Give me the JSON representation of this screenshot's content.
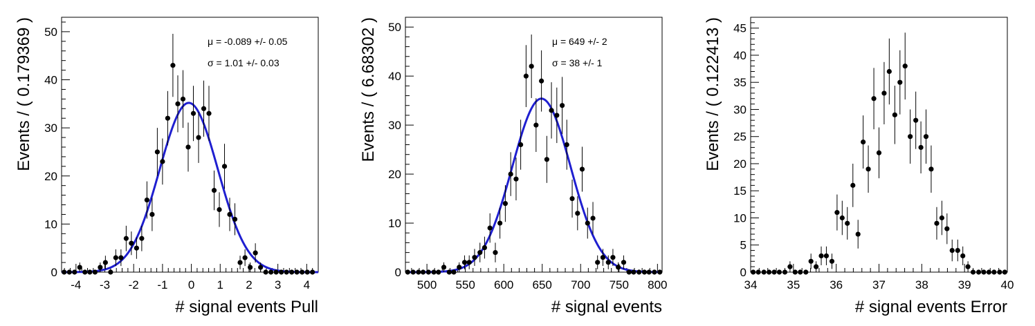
{
  "chart_data": [
    {
      "type": "scatter",
      "xlabel": "# signal events Pull",
      "ylabel": "Events / ( 0.179369 )",
      "xlim": [
        -4.5,
        4.4
      ],
      "ylim": [
        0,
        53
      ],
      "xticks": [
        -4,
        -3,
        -2,
        -1,
        0,
        1,
        2,
        3,
        4
      ],
      "yticks": [
        0,
        10,
        20,
        30,
        40,
        50
      ],
      "annotations": [
        "μ = -0.089 +/- 0.05",
        "σ =  1.01 +/- 0.03"
      ],
      "fit": {
        "type": "gaussian",
        "mean": -0.089,
        "sigma": 1.01,
        "amplitude": 35.2,
        "color": "#1f1fd0"
      },
      "x": [
        -4.41,
        -4.23,
        -4.05,
        -3.87,
        -3.69,
        -3.52,
        -3.34,
        -3.16,
        -2.98,
        -2.8,
        -2.62,
        -2.44,
        -2.26,
        -2.08,
        -1.9,
        -1.72,
        -1.54,
        -1.36,
        -1.18,
        -1.0,
        -0.82,
        -0.64,
        -0.47,
        -0.29,
        -0.11,
        0.07,
        0.25,
        0.43,
        0.61,
        0.79,
        0.97,
        1.15,
        1.33,
        1.51,
        1.69,
        1.86,
        2.04,
        2.22,
        2.4,
        2.58,
        2.76,
        2.94,
        3.12,
        3.3,
        3.48,
        3.66,
        3.84,
        4.02,
        4.2
      ],
      "y": [
        0,
        0,
        0,
        1,
        0,
        0,
        0,
        1,
        2,
        0,
        3,
        3,
        7,
        6,
        5,
        7,
        15,
        12,
        25,
        23,
        32,
        43,
        35,
        36,
        26,
        33,
        28,
        34,
        33,
        17,
        13,
        22,
        12,
        11,
        2,
        3,
        1,
        4,
        1,
        0,
        0,
        0,
        0,
        0,
        0,
        0,
        0,
        0,
        0
      ],
      "color": "#000000"
    },
    {
      "type": "scatter",
      "xlabel": "# signal events",
      "ylabel": "Events / ( 6.68302 )",
      "xlim": [
        472,
        806
      ],
      "ylim": [
        0,
        52
      ],
      "xticks": [
        500,
        550,
        600,
        650,
        700,
        750,
        800
      ],
      "yticks": [
        0,
        10,
        20,
        30,
        40,
        50
      ],
      "annotations": [
        "μ =  649 +/- 2",
        "σ =  38 +/- 1"
      ],
      "fit": {
        "type": "gaussian",
        "mean": 649,
        "sigma": 38,
        "amplitude": 35.4,
        "color": "#1f1fd0"
      },
      "x": [
        475,
        482,
        489,
        495,
        502,
        509,
        515,
        522,
        529,
        535,
        542,
        549,
        555,
        562,
        569,
        575,
        582,
        589,
        595,
        602,
        609,
        616,
        622,
        629,
        636,
        642,
        649,
        656,
        662,
        669,
        676,
        682,
        689,
        696,
        702,
        709,
        716,
        722,
        729,
        736,
        742,
        749,
        756,
        763,
        769,
        776,
        783,
        789,
        796,
        803
      ],
      "y": [
        0,
        0,
        0,
        0,
        0,
        0,
        0,
        1,
        0,
        0,
        1,
        2,
        2,
        3,
        4,
        5,
        9,
        4,
        10,
        14,
        20,
        19,
        26,
        40,
        42,
        30,
        39,
        23,
        33,
        32,
        34,
        26,
        15,
        12,
        21,
        10,
        11,
        2,
        3,
        2,
        3,
        1,
        2,
        0,
        0,
        0,
        0,
        0,
        0,
        0
      ],
      "color": "#000000"
    },
    {
      "type": "scatter",
      "xlabel": "# signal events Error",
      "ylabel": "Events / ( 0.122413 )",
      "xlim": [
        34,
        40
      ],
      "ylim": [
        0,
        47
      ],
      "xticks": [
        34,
        35,
        36,
        37,
        38,
        39,
        40
      ],
      "yticks": [
        0,
        5,
        10,
        15,
        20,
        25,
        30,
        35,
        40,
        45
      ],
      "annotations": [],
      "fit": null,
      "x": [
        34.06,
        34.18,
        34.31,
        34.43,
        34.55,
        34.67,
        34.8,
        34.92,
        35.04,
        35.16,
        35.29,
        35.41,
        35.53,
        35.65,
        35.77,
        35.9,
        36.02,
        36.14,
        36.26,
        36.39,
        36.51,
        36.63,
        36.75,
        36.88,
        37.0,
        37.12,
        37.24,
        37.37,
        37.49,
        37.61,
        37.73,
        37.86,
        37.98,
        38.1,
        38.22,
        38.35,
        38.47,
        38.59,
        38.71,
        38.84,
        38.96,
        39.08,
        39.2,
        39.33,
        39.45,
        39.57,
        39.69,
        39.82,
        39.94
      ],
      "y": [
        0,
        0,
        0,
        0,
        0,
        0,
        0,
        1,
        0,
        0,
        0,
        2,
        1,
        3,
        3,
        2,
        11,
        10,
        9,
        16,
        7,
        24,
        19,
        32,
        22,
        33,
        37,
        29,
        35,
        38,
        25,
        28,
        23,
        25,
        19,
        9,
        10,
        8,
        4,
        4,
        3,
        1,
        0,
        0,
        0,
        0,
        0,
        0,
        0
      ],
      "color": "#000000"
    }
  ]
}
